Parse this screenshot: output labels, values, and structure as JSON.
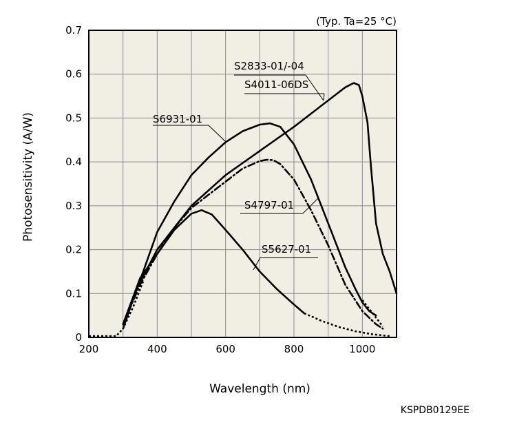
{
  "chart_data": {
    "type": "line",
    "condition": "(Typ. Ta=25 °C)",
    "xlabel": "Wavelength (nm)",
    "ylabel": "Photosensitivity (A/W)",
    "footer_code": "KSPDB0129EE",
    "xlim": [
      200,
      1100
    ],
    "ylim": [
      0,
      0.7
    ],
    "xticks": [
      "200",
      "400",
      "600",
      "800",
      "1000"
    ],
    "yticks": [
      "0",
      "0.1",
      "0.2",
      "0.3",
      "0.4",
      "0.5",
      "0.6",
      "0.7"
    ],
    "grid": true,
    "plot_background": "#f1efe3",
    "line_color": "#000000",
    "series": [
      {
        "name": "S2833-01/-04 S4011-06DS",
        "style": "solid",
        "x": [
          300,
          340,
          400,
          500,
          600,
          700,
          800,
          900,
          950,
          975,
          990,
          1000,
          1015,
          1025,
          1040,
          1060,
          1080,
          1100
        ],
        "y": [
          0.02,
          0.11,
          0.2,
          0.3,
          0.37,
          0.425,
          0.48,
          0.54,
          0.57,
          0.58,
          0.575,
          0.55,
          0.49,
          0.39,
          0.26,
          0.19,
          0.15,
          0.1
        ]
      },
      {
        "name": "S6931-01",
        "style": "solid",
        "x": [
          300,
          350,
          400,
          450,
          500,
          550,
          600,
          650,
          700,
          730,
          760,
          800,
          850,
          900,
          950,
          980,
          1000,
          1020,
          1040
        ],
        "y": [
          0.03,
          0.13,
          0.24,
          0.31,
          0.37,
          0.41,
          0.445,
          0.47,
          0.485,
          0.488,
          0.48,
          0.44,
          0.36,
          0.26,
          0.16,
          0.11,
          0.08,
          0.06,
          0.05
        ]
      },
      {
        "name": "S4797-01",
        "style": "dashdot",
        "x": [
          300,
          350,
          400,
          450,
          500,
          550,
          600,
          650,
          700,
          720,
          740,
          760,
          800,
          850,
          900,
          950,
          1000,
          1040,
          1060
        ],
        "y": [
          0.03,
          0.12,
          0.19,
          0.25,
          0.295,
          0.325,
          0.355,
          0.385,
          0.402,
          0.405,
          0.404,
          0.395,
          0.36,
          0.29,
          0.21,
          0.12,
          0.06,
          0.03,
          0.02
        ]
      },
      {
        "name": "S5627-01",
        "style": "solid",
        "x": [
          300,
          350,
          400,
          450,
          500,
          530,
          560,
          600,
          650,
          700,
          750,
          800,
          830
        ],
        "y": [
          0.03,
          0.135,
          0.19,
          0.245,
          0.282,
          0.29,
          0.28,
          0.245,
          0.2,
          0.15,
          0.11,
          0.075,
          0.055
        ]
      }
    ],
    "dotted_tails": [
      {
        "name": "S5627-01-tail",
        "x": [
          830,
          880,
          930,
          980,
          1030,
          1080
        ],
        "y": [
          0.055,
          0.038,
          0.024,
          0.014,
          0.007,
          0.003
        ]
      },
      {
        "name": "left-tail",
        "x": [
          200,
          260,
          280,
          300,
          330,
          360
        ],
        "y": [
          0.003,
          0.003,
          0.003,
          0.02,
          0.07,
          0.13
        ]
      },
      {
        "name": "S6931-01-tail",
        "x": [
          1000,
          1020,
          1040,
          1060
        ],
        "y": [
          0.085,
          0.065,
          0.045,
          0.025
        ]
      }
    ],
    "annotations": [
      {
        "text": "S2833-01/-04",
        "series": "S2833-01/-04 S4011-06DS",
        "point": [
          880,
          0.53
        ]
      },
      {
        "text": "S4011-06DS",
        "series": "S2833-01/-04 S4011-06DS",
        "point": [
          880,
          0.53
        ]
      },
      {
        "text": "S6931-01",
        "series": "S6931-01",
        "point": [
          600,
          0.445
        ]
      },
      {
        "text": "S4797-01",
        "series": "S4797-01",
        "point": [
          860,
          0.32
        ]
      },
      {
        "text": "S5627-01",
        "series": "S5627-01",
        "point": [
          760,
          0.13
        ]
      }
    ]
  }
}
